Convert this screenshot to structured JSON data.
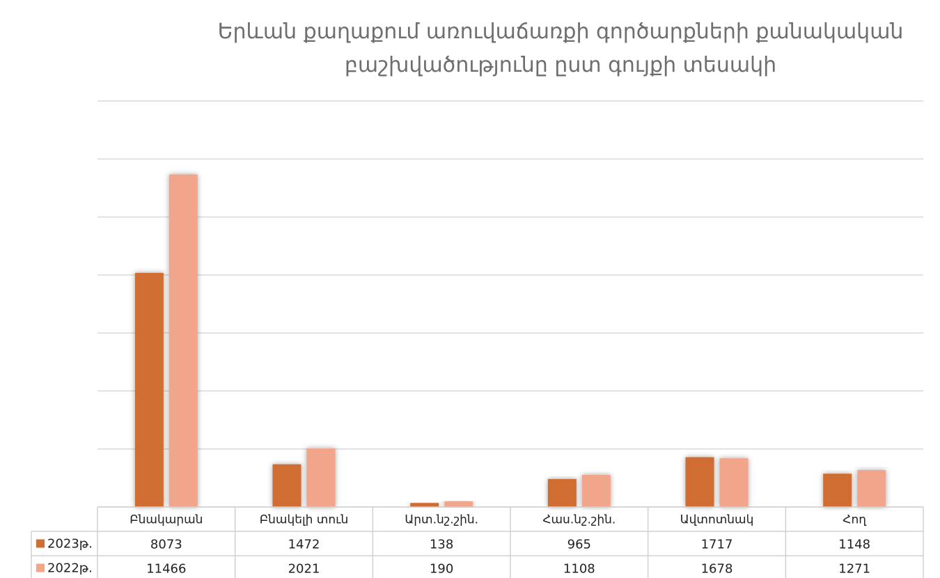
{
  "chart_data": {
    "type": "bar",
    "title_lines": [
      "Երևան քաղաքում առուվաճառքի  գործարքների քանակական",
      "բաշխվածությունը ըստ գույքի տեսակի"
    ],
    "categories": [
      "Բնակարան",
      "Բնակելի տուն",
      "Արտ.նշ.շին.",
      "Հաս.նշ.շին.",
      "Ավտոտնակ",
      "Հող"
    ],
    "series": [
      {
        "name": "2023թ.",
        "values": [
          8073,
          1472,
          138,
          965,
          1717,
          1148
        ],
        "color": "#d06d33"
      },
      {
        "name": "2022թ.",
        "values": [
          11466,
          2021,
          190,
          1108,
          1678,
          1271
        ],
        "color": "#f1a68b"
      }
    ],
    "ylim": [
      0,
      14000
    ],
    "grid": true,
    "legend": "data-table-below"
  }
}
